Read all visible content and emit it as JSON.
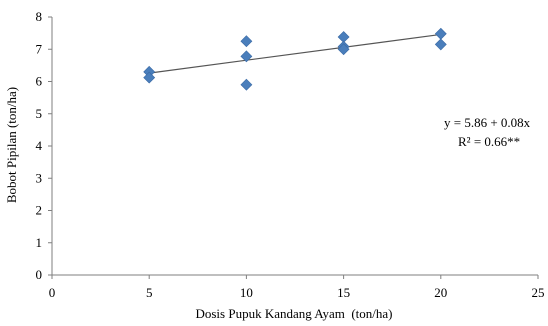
{
  "chart_data": {
    "type": "scatter",
    "xlabel": "Dosis Pupuk Kandang Ayam  (ton/ha)",
    "ylabel": "Bobot Pipilan (ton/ha)",
    "xlim": [
      0,
      25
    ],
    "ylim": [
      0,
      8
    ],
    "x_ticks": [
      0,
      5,
      10,
      15,
      20,
      25
    ],
    "y_ticks": [
      0,
      1,
      2,
      3,
      4,
      5,
      6,
      7,
      8
    ],
    "grid": false,
    "marker": "diamond",
    "marker_color": "#4a7ebb",
    "trendline_color": "#555555",
    "points": [
      {
        "x": 5,
        "y": 6.3
      },
      {
        "x": 5,
        "y": 6.12
      },
      {
        "x": 10,
        "y": 7.25
      },
      {
        "x": 10,
        "y": 6.78
      },
      {
        "x": 10,
        "y": 5.9
      },
      {
        "x": 15,
        "y": 7.38
      },
      {
        "x": 15,
        "y": 7.08
      },
      {
        "x": 15,
        "y": 7.0
      },
      {
        "x": 20,
        "y": 7.48
      },
      {
        "x": 20,
        "y": 7.15
      }
    ],
    "trendline": {
      "intercept": 5.86,
      "slope": 0.08,
      "x_start": 5,
      "x_end": 20
    },
    "annotations": [
      "y = 5.86 + 0.08x",
      "R² = 0.66**"
    ]
  }
}
